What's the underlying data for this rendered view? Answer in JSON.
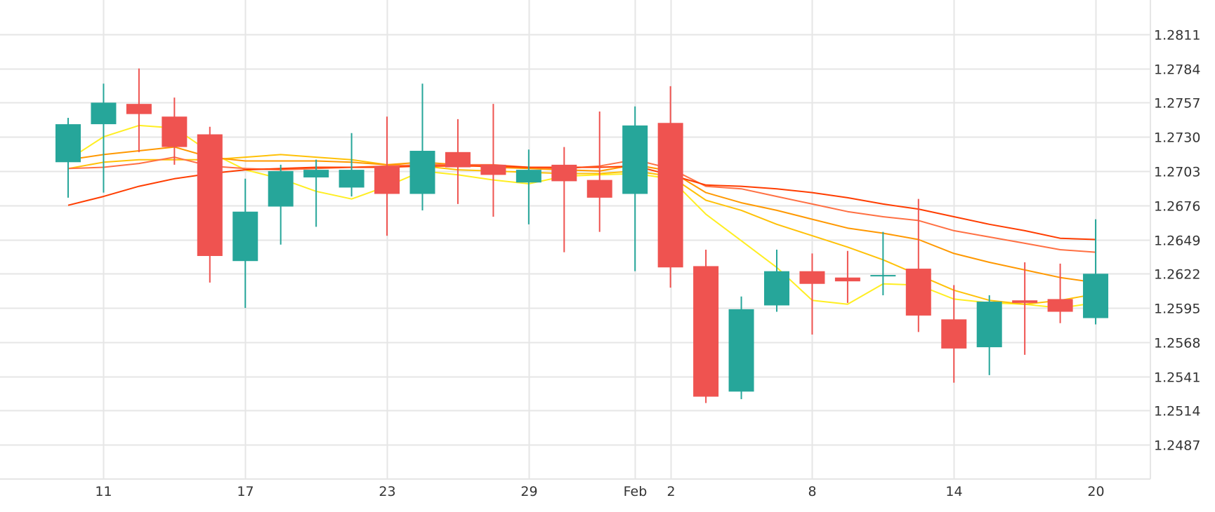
{
  "chart_data": {
    "type": "candlestick",
    "y_axis": {
      "ticks": [
        "1.2811",
        "1.2784",
        "1.2757",
        "1.2730",
        "1.2703",
        "1.2676",
        "1.2649",
        "1.2622",
        "1.2595",
        "1.2568",
        "1.2541",
        "1.2514",
        "1.2487"
      ],
      "range": [
        1.246,
        1.2838
      ],
      "position": "right"
    },
    "x_axis": {
      "ticks": [
        {
          "label": "11",
          "index": 1
        },
        {
          "label": "17",
          "index": 5
        },
        {
          "label": "23",
          "index": 9
        },
        {
          "label": "29",
          "index": 13
        },
        {
          "label": "Feb",
          "index": 16
        },
        {
          "label": "2",
          "index": 17
        },
        {
          "label": "8",
          "index": 21
        },
        {
          "label": "14",
          "index": 25
        },
        {
          "label": "20",
          "index": 29
        }
      ]
    },
    "grid": true,
    "colors": {
      "up": "#26a69a",
      "down": "#ef5350",
      "grid": "#e6e6e6"
    },
    "candles": [
      {
        "i": 0,
        "o": 1.271,
        "h": 1.2745,
        "l": 1.2682,
        "c": 1.274
      },
      {
        "i": 1,
        "o": 1.274,
        "h": 1.2772,
        "l": 1.2686,
        "c": 1.2757
      },
      {
        "i": 2,
        "o": 1.2756,
        "h": 1.2784,
        "l": 1.2718,
        "c": 1.2748
      },
      {
        "i": 3,
        "o": 1.2746,
        "h": 1.2761,
        "l": 1.2708,
        "c": 1.2722
      },
      {
        "i": 4,
        "o": 1.2732,
        "h": 1.2738,
        "l": 1.2615,
        "c": 1.2636
      },
      {
        "i": 5,
        "o": 1.2632,
        "h": 1.2697,
        "l": 1.2595,
        "c": 1.2671
      },
      {
        "i": 6,
        "o": 1.2675,
        "h": 1.2708,
        "l": 1.2645,
        "c": 1.2703
      },
      {
        "i": 7,
        "o": 1.2698,
        "h": 1.2712,
        "l": 1.2659,
        "c": 1.2704
      },
      {
        "i": 8,
        "o": 1.269,
        "h": 1.2733,
        "l": 1.2683,
        "c": 1.2704
      },
      {
        "i": 9,
        "o": 1.2707,
        "h": 1.2746,
        "l": 1.2652,
        "c": 1.2685
      },
      {
        "i": 10,
        "o": 1.2685,
        "h": 1.2772,
        "l": 1.2672,
        "c": 1.2719
      },
      {
        "i": 11,
        "o": 1.2718,
        "h": 1.2744,
        "l": 1.2677,
        "c": 1.2706
      },
      {
        "i": 12,
        "o": 1.2708,
        "h": 1.2756,
        "l": 1.2667,
        "c": 1.27
      },
      {
        "i": 13,
        "o": 1.2694,
        "h": 1.272,
        "l": 1.2661,
        "c": 1.2704
      },
      {
        "i": 14,
        "o": 1.2708,
        "h": 1.2722,
        "l": 1.2639,
        "c": 1.2695
      },
      {
        "i": 15,
        "o": 1.2696,
        "h": 1.275,
        "l": 1.2655,
        "c": 1.2682
      },
      {
        "i": 16,
        "o": 1.2685,
        "h": 1.2754,
        "l": 1.2624,
        "c": 1.2739
      },
      {
        "i": 17,
        "o": 1.2741,
        "h": 1.277,
        "l": 1.2611,
        "c": 1.2627
      },
      {
        "i": 18,
        "o": 1.2628,
        "h": 1.2641,
        "l": 1.252,
        "c": 1.2525
      },
      {
        "i": 19,
        "o": 1.2529,
        "h": 1.2604,
        "l": 1.2523,
        "c": 1.2594
      },
      {
        "i": 20,
        "o": 1.2597,
        "h": 1.2641,
        "l": 1.2592,
        "c": 1.2624
      },
      {
        "i": 21,
        "o": 1.2624,
        "h": 1.2638,
        "l": 1.2574,
        "c": 1.2614
      },
      {
        "i": 22,
        "o": 1.2619,
        "h": 1.264,
        "l": 1.2599,
        "c": 1.2616
      },
      {
        "i": 23,
        "o": 1.262,
        "h": 1.2655,
        "l": 1.2605,
        "c": 1.2621
      },
      {
        "i": 24,
        "o": 1.2626,
        "h": 1.2681,
        "l": 1.2576,
        "c": 1.2589
      },
      {
        "i": 25,
        "o": 1.2586,
        "h": 1.2613,
        "l": 1.2536,
        "c": 1.2563
      },
      {
        "i": 26,
        "o": 1.2564,
        "h": 1.2605,
        "l": 1.2542,
        "c": 1.26
      },
      {
        "i": 27,
        "o": 1.2601,
        "h": 1.2631,
        "l": 1.2558,
        "c": 1.2599
      },
      {
        "i": 28,
        "o": 1.2602,
        "h": 1.263,
        "l": 1.2583,
        "c": 1.2592
      },
      {
        "i": 29,
        "o": 1.2587,
        "h": 1.2665,
        "l": 1.2582,
        "c": 1.2622
      }
    ],
    "moving_averages": [
      {
        "color": "#ffee22",
        "values": [
          [
            0,
            1.2712
          ],
          [
            1,
            1.273
          ],
          [
            2,
            1.2739
          ],
          [
            3,
            1.2737
          ],
          [
            4,
            1.2718
          ],
          [
            5,
            1.2704
          ],
          [
            6,
            1.2697
          ],
          [
            7,
            1.2687
          ],
          [
            8,
            1.2681
          ],
          [
            9,
            1.2691
          ],
          [
            10,
            1.2703
          ],
          [
            11,
            1.27
          ],
          [
            12,
            1.2696
          ],
          [
            13,
            1.2693
          ],
          [
            14,
            1.2699
          ],
          [
            15,
            1.27
          ],
          [
            16,
            1.2701
          ],
          [
            17,
            1.2697
          ],
          [
            18,
            1.2669
          ],
          [
            19,
            1.2648
          ],
          [
            20,
            1.2627
          ],
          [
            21,
            1.2601
          ],
          [
            22,
            1.2598
          ],
          [
            23,
            1.2614
          ],
          [
            24,
            1.2613
          ],
          [
            25,
            1.2602
          ],
          [
            26,
            1.2599
          ],
          [
            27,
            1.2598
          ],
          [
            28,
            1.2595
          ],
          [
            29,
            1.2599
          ]
        ]
      },
      {
        "color": "#ffc107",
        "values": [
          [
            0,
            1.2705
          ],
          [
            1,
            1.271
          ],
          [
            2,
            1.2712
          ],
          [
            3,
            1.2712
          ],
          [
            4,
            1.2712
          ],
          [
            5,
            1.2714
          ],
          [
            6,
            1.2716
          ],
          [
            7,
            1.2714
          ],
          [
            8,
            1.2712
          ],
          [
            9,
            1.2708
          ],
          [
            10,
            1.2707
          ],
          [
            11,
            1.2704
          ],
          [
            12,
            1.2703
          ],
          [
            13,
            1.2702
          ],
          [
            14,
            1.2701
          ],
          [
            15,
            1.2701
          ],
          [
            16,
            1.2703
          ],
          [
            17,
            1.2699
          ],
          [
            18,
            1.268
          ],
          [
            19,
            1.2672
          ],
          [
            20,
            1.2661
          ],
          [
            21,
            1.2652
          ],
          [
            22,
            1.2643
          ],
          [
            23,
            1.2633
          ],
          [
            24,
            1.2621
          ],
          [
            25,
            1.2609
          ],
          [
            26,
            1.2601
          ],
          [
            27,
            1.2598
          ],
          [
            28,
            1.2601
          ],
          [
            29,
            1.2606
          ]
        ]
      },
      {
        "color": "#ff9800",
        "values": [
          [
            0,
            1.2712
          ],
          [
            1,
            1.2716
          ],
          [
            2,
            1.2719
          ],
          [
            3,
            1.2722
          ],
          [
            4,
            1.2714
          ],
          [
            5,
            1.2711
          ],
          [
            6,
            1.2711
          ],
          [
            7,
            1.2711
          ],
          [
            8,
            1.271
          ],
          [
            9,
            1.2708
          ],
          [
            10,
            1.271
          ],
          [
            11,
            1.2708
          ],
          [
            12,
            1.2706
          ],
          [
            13,
            1.2705
          ],
          [
            14,
            1.2704
          ],
          [
            15,
            1.2703
          ],
          [
            16,
            1.2708
          ],
          [
            17,
            1.2703
          ],
          [
            18,
            1.2686
          ],
          [
            19,
            1.2678
          ],
          [
            20,
            1.2672
          ],
          [
            21,
            1.2665
          ],
          [
            22,
            1.2658
          ],
          [
            23,
            1.2654
          ],
          [
            24,
            1.2649
          ],
          [
            25,
            1.2638
          ],
          [
            26,
            1.2631
          ],
          [
            27,
            1.2625
          ],
          [
            28,
            1.2619
          ],
          [
            29,
            1.2615
          ]
        ]
      },
      {
        "color": "#ff7043",
        "values": [
          [
            0,
            1.2705
          ],
          [
            1,
            1.2706
          ],
          [
            2,
            1.2709
          ],
          [
            3,
            1.2714
          ],
          [
            4,
            1.2707
          ],
          [
            5,
            1.2705
          ],
          [
            6,
            1.2704
          ],
          [
            7,
            1.2705
          ],
          [
            8,
            1.2706
          ],
          [
            9,
            1.2707
          ],
          [
            10,
            1.2708
          ],
          [
            11,
            1.2708
          ],
          [
            12,
            1.2708
          ],
          [
            13,
            1.2706
          ],
          [
            14,
            1.2705
          ],
          [
            15,
            1.2707
          ],
          [
            16,
            1.2712
          ],
          [
            17,
            1.2705
          ],
          [
            18,
            1.2691
          ],
          [
            19,
            1.2689
          ],
          [
            20,
            1.2683
          ],
          [
            21,
            1.2677
          ],
          [
            22,
            1.2671
          ],
          [
            23,
            1.2667
          ],
          [
            24,
            1.2664
          ],
          [
            25,
            1.2656
          ],
          [
            26,
            1.2651
          ],
          [
            27,
            1.2646
          ],
          [
            28,
            1.2641
          ],
          [
            29,
            1.2639
          ]
        ]
      },
      {
        "color": "#ff3d00",
        "values": [
          [
            0,
            1.2676
          ],
          [
            1,
            1.2683
          ],
          [
            2,
            1.2691
          ],
          [
            3,
            1.2697
          ],
          [
            4,
            1.2701
          ],
          [
            5,
            1.2704
          ],
          [
            6,
            1.2705
          ],
          [
            7,
            1.2706
          ],
          [
            8,
            1.2706
          ],
          [
            9,
            1.2706
          ],
          [
            10,
            1.2707
          ],
          [
            11,
            1.2707
          ],
          [
            12,
            1.2707
          ],
          [
            13,
            1.2706
          ],
          [
            14,
            1.2706
          ],
          [
            15,
            1.2706
          ],
          [
            16,
            1.2707
          ],
          [
            17,
            1.27
          ],
          [
            18,
            1.2692
          ],
          [
            19,
            1.2691
          ],
          [
            20,
            1.2689
          ],
          [
            21,
            1.2686
          ],
          [
            22,
            1.2682
          ],
          [
            23,
            1.2677
          ],
          [
            24,
            1.2673
          ],
          [
            25,
            1.2667
          ],
          [
            26,
            1.2661
          ],
          [
            27,
            1.2656
          ],
          [
            28,
            1.265
          ],
          [
            29,
            1.2649
          ]
        ]
      }
    ]
  }
}
